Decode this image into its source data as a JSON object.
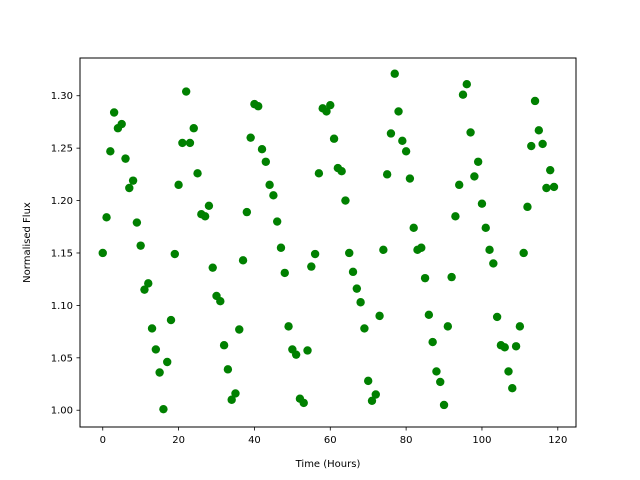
{
  "chart_data": {
    "type": "scatter",
    "title": "",
    "xlabel": "Time (Hours)",
    "ylabel": "Normalised Flux",
    "xlim": [
      -6,
      124.8
    ],
    "ylim": [
      0.984,
      1.336
    ],
    "xticks": [
      0,
      20,
      40,
      60,
      80,
      100,
      120
    ],
    "xtick_labels": [
      "0",
      "20",
      "40",
      "60",
      "80",
      "100",
      "120"
    ],
    "yticks": [
      1.0,
      1.05,
      1.1,
      1.15,
      1.2,
      1.25,
      1.3
    ],
    "ytick_labels": [
      "1.00",
      "1.05",
      "1.10",
      "1.15",
      "1.20",
      "1.25",
      "1.30"
    ],
    "grid": false,
    "marker_color": "#008000",
    "series": [
      {
        "points": [
          [
            0,
            1.15
          ],
          [
            1,
            1.184
          ],
          [
            2,
            1.247
          ],
          [
            3,
            1.284
          ],
          [
            4,
            1.269
          ],
          [
            5,
            1.273
          ],
          [
            6,
            1.24
          ],
          [
            7,
            1.212
          ],
          [
            8,
            1.219
          ],
          [
            9,
            1.179
          ],
          [
            10,
            1.157
          ],
          [
            11,
            1.115
          ],
          [
            12,
            1.121
          ],
          [
            13,
            1.078
          ],
          [
            14,
            1.058
          ],
          [
            15,
            1.036
          ],
          [
            16,
            1.001
          ],
          [
            17,
            1.046
          ],
          [
            18,
            1.086
          ],
          [
            19,
            1.149
          ],
          [
            20,
            1.215
          ],
          [
            21,
            1.255
          ],
          [
            22,
            1.304
          ],
          [
            23,
            1.255
          ],
          [
            24,
            1.269
          ],
          [
            25,
            1.226
          ],
          [
            26,
            1.187
          ],
          [
            27,
            1.185
          ],
          [
            28,
            1.195
          ],
          [
            29,
            1.136
          ],
          [
            30,
            1.109
          ],
          [
            31,
            1.104
          ],
          [
            32,
            1.062
          ],
          [
            33,
            1.039
          ],
          [
            34,
            1.01
          ],
          [
            35,
            1.016
          ],
          [
            36,
            1.077
          ],
          [
            37,
            1.143
          ],
          [
            38,
            1.189
          ],
          [
            39,
            1.26
          ],
          [
            40,
            1.292
          ],
          [
            41,
            1.29
          ],
          [
            42,
            1.249
          ],
          [
            43,
            1.237
          ],
          [
            44,
            1.215
          ],
          [
            45,
            1.205
          ],
          [
            46,
            1.18
          ],
          [
            47,
            1.155
          ],
          [
            48,
            1.131
          ],
          [
            49,
            1.08
          ],
          [
            50,
            1.058
          ],
          [
            51,
            1.053
          ],
          [
            52,
            1.011
          ],
          [
            53,
            1.007
          ],
          [
            54,
            1.057
          ],
          [
            55,
            1.137
          ],
          [
            56,
            1.149
          ],
          [
            57,
            1.226
          ],
          [
            58,
            1.288
          ],
          [
            59,
            1.285
          ],
          [
            60,
            1.291
          ],
          [
            61,
            1.259
          ],
          [
            62,
            1.231
          ],
          [
            63,
            1.228
          ],
          [
            64,
            1.2
          ],
          [
            65,
            1.15
          ],
          [
            66,
            1.132
          ],
          [
            67,
            1.116
          ],
          [
            68,
            1.103
          ],
          [
            69,
            1.078
          ],
          [
            70,
            1.028
          ],
          [
            71,
            1.009
          ],
          [
            72,
            1.015
          ],
          [
            73,
            1.09
          ],
          [
            74,
            1.153
          ],
          [
            75,
            1.225
          ],
          [
            76,
            1.264
          ],
          [
            77,
            1.321
          ],
          [
            78,
            1.285
          ],
          [
            79,
            1.257
          ],
          [
            80,
            1.247
          ],
          [
            81,
            1.221
          ],
          [
            82,
            1.174
          ],
          [
            83,
            1.153
          ],
          [
            84,
            1.155
          ],
          [
            85,
            1.126
          ],
          [
            86,
            1.091
          ],
          [
            87,
            1.065
          ],
          [
            88,
            1.037
          ],
          [
            89,
            1.027
          ],
          [
            90,
            1.005
          ],
          [
            91,
            1.08
          ],
          [
            92,
            1.127
          ],
          [
            93,
            1.185
          ],
          [
            94,
            1.215
          ],
          [
            95,
            1.301
          ],
          [
            96,
            1.311
          ],
          [
            97,
            1.265
          ],
          [
            98,
            1.223
          ],
          [
            99,
            1.237
          ],
          [
            100,
            1.197
          ],
          [
            101,
            1.174
          ],
          [
            102,
            1.153
          ],
          [
            103,
            1.14
          ],
          [
            104,
            1.089
          ],
          [
            105,
            1.062
          ],
          [
            106,
            1.06
          ],
          [
            107,
            1.037
          ],
          [
            108,
            1.021
          ],
          [
            109,
            1.061
          ],
          [
            110,
            1.08
          ],
          [
            111,
            1.15
          ],
          [
            112,
            1.194
          ],
          [
            113,
            1.252
          ],
          [
            114,
            1.295
          ],
          [
            115,
            1.267
          ],
          [
            116,
            1.254
          ],
          [
            117,
            1.212
          ],
          [
            118,
            1.229
          ],
          [
            119,
            1.213
          ]
        ]
      }
    ]
  }
}
